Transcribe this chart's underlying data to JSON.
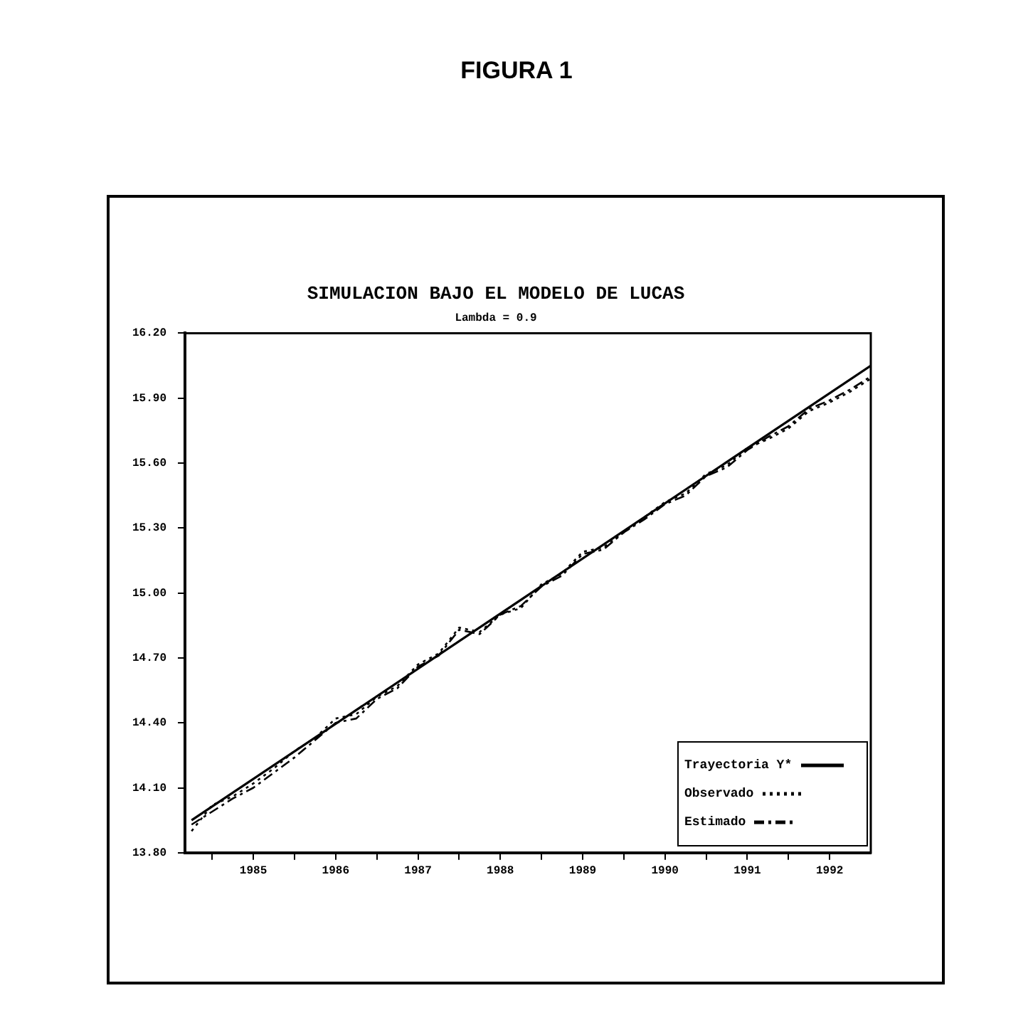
{
  "chart_data": {
    "type": "line",
    "title": "SIMULACION BAJO EL MODELO DE LUCAS",
    "subtitle": "Lambda = 0.9",
    "annotations": [
      "FIGURA 1"
    ],
    "xlim": [
      1984.67,
      1993.0
    ],
    "xticks": [
      {
        "value": 1985,
        "label": null
      },
      {
        "value": 1985.5,
        "label": "1985"
      },
      {
        "value": 1986,
        "label": null
      },
      {
        "value": 1986.5,
        "label": "1986"
      },
      {
        "value": 1987,
        "label": null
      },
      {
        "value": 1987.5,
        "label": "1987"
      },
      {
        "value": 1988,
        "label": null
      },
      {
        "value": 1988.5,
        "label": "1988"
      },
      {
        "value": 1989,
        "label": null
      },
      {
        "value": 1989.5,
        "label": "1989"
      },
      {
        "value": 1990,
        "label": null
      },
      {
        "value": 1990.5,
        "label": "1990"
      },
      {
        "value": 1991,
        "label": null
      },
      {
        "value": 1991.5,
        "label": "1991"
      },
      {
        "value": 1992,
        "label": null
      },
      {
        "value": 1992.5,
        "label": "1992"
      }
    ],
    "ylim": [
      13.8,
      16.2
    ],
    "yticks": [
      {
        "value": 13.8,
        "label": "13.80"
      },
      {
        "value": 14.1,
        "label": "14.10"
      },
      {
        "value": 14.4,
        "label": "14.40"
      },
      {
        "value": 14.7,
        "label": "14.70"
      },
      {
        "value": 15.0,
        "label": "15.00"
      },
      {
        "value": 15.3,
        "label": "15.30"
      },
      {
        "value": 15.6,
        "label": "15.60"
      },
      {
        "value": 15.9,
        "label": "15.90"
      },
      {
        "value": 16.2,
        "label": "16.20"
      }
    ],
    "grid": false,
    "legend": "bottom right",
    "marker": "none",
    "x": [
      1984.75,
      1985.0,
      1985.25,
      1985.5,
      1985.75,
      1986.0,
      1986.25,
      1986.5,
      1986.75,
      1987.0,
      1987.25,
      1987.5,
      1987.75,
      1988.0,
      1988.25,
      1988.5,
      1988.75,
      1989.0,
      1989.25,
      1989.5,
      1989.75,
      1990.0,
      1990.25,
      1990.5,
      1990.75,
      1991.0,
      1991.25,
      1991.5,
      1991.75,
      1992.0,
      1992.25,
      1992.5,
      1992.75,
      1993.0
    ],
    "series": [
      {
        "name": "Trayectoria Y*",
        "color": "#000000",
        "line_style": "solid",
        "x": [
          1984.75,
          1993.0
        ],
        "values": [
          13.95,
          16.05
        ]
      },
      {
        "name": "Observado",
        "color": "#000000",
        "line_style": "dotted",
        "values": [
          13.9,
          14.02,
          14.06,
          14.12,
          14.19,
          14.27,
          14.33,
          14.42,
          14.44,
          14.52,
          14.57,
          14.67,
          14.72,
          14.84,
          14.82,
          14.9,
          14.93,
          15.04,
          15.09,
          15.19,
          15.21,
          15.28,
          15.35,
          15.42,
          15.46,
          15.55,
          15.59,
          15.67,
          15.71,
          15.76,
          15.84,
          15.88,
          15.93,
          15.99
        ]
      },
      {
        "name": "Estimado",
        "color": "#000000",
        "line_style": "dashed",
        "values": [
          13.93,
          13.99,
          14.05,
          14.1,
          14.17,
          14.24,
          14.32,
          14.4,
          14.42,
          14.51,
          14.56,
          14.66,
          14.71,
          14.83,
          14.81,
          14.9,
          14.94,
          15.03,
          15.08,
          15.18,
          15.2,
          15.28,
          15.34,
          15.41,
          15.45,
          15.54,
          15.58,
          15.66,
          15.72,
          15.77,
          15.85,
          15.89,
          15.94,
          16.0
        ]
      }
    ]
  }
}
